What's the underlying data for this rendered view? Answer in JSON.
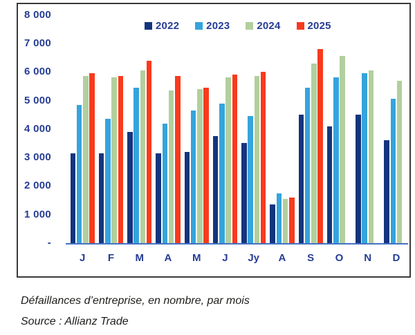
{
  "caption": {
    "line1": "Défaillances d’entreprise, en nombre, par mois",
    "line2": "Source : Allianz Trade"
  },
  "chart_data": {
    "type": "bar",
    "title": "",
    "xlabel": "",
    "ylabel": "",
    "categories": [
      "J",
      "F",
      "M",
      "A",
      "M",
      "J",
      "Jy",
      "A",
      "S",
      "O",
      "N",
      "D"
    ],
    "series": [
      {
        "name": "2022",
        "color": "#14357E",
        "values": [
          3150,
          3150,
          3900,
          3150,
          3200,
          3750,
          3500,
          1350,
          4500,
          4100,
          4500,
          3600
        ]
      },
      {
        "name": "2023",
        "color": "#35A4DC",
        "values": [
          4850,
          4350,
          5450,
          4200,
          4650,
          4900,
          4450,
          1750,
          5450,
          5800,
          5950,
          5050
        ]
      },
      {
        "name": "2024",
        "color": "#B2CF9D",
        "values": [
          5850,
          5800,
          6050,
          5350,
          5400,
          5800,
          5850,
          1550,
          6300,
          6550,
          6050,
          5700
        ]
      },
      {
        "name": "2025",
        "color": "#F93A1D",
        "values": [
          5950,
          5850,
          6400,
          5850,
          5450,
          5900,
          6000,
          1600,
          6800,
          null,
          null,
          null
        ]
      }
    ],
    "ylim": [
      0,
      8000
    ],
    "yticks": [
      {
        "label": "8 000",
        "value": 8000
      },
      {
        "label": "7 000",
        "value": 7000
      },
      {
        "label": "6 000",
        "value": 6000
      },
      {
        "label": "5 000",
        "value": 5000
      },
      {
        "label": "4 000",
        "value": 4000
      },
      {
        "label": "3 000",
        "value": 3000
      },
      {
        "label": "2 000",
        "value": 2000
      },
      {
        "label": "1 000",
        "value": 1000
      },
      {
        "label": "-",
        "value": 0
      }
    ],
    "grid": false,
    "legend_position": "top",
    "axis_line_color": "#4472C4",
    "text_color": "#263D94",
    "frame_color": "#3a3a3a"
  }
}
